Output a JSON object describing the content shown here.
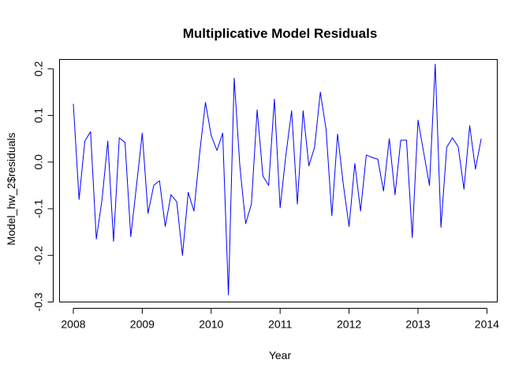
{
  "chart_data": {
    "type": "line",
    "title": "Multiplicative Model Residuals",
    "xlabel": "Year",
    "ylabel": "Model_hw_2$residuals",
    "xlim": [
      2007.8,
      2014.15
    ],
    "ylim": [
      -0.3,
      0.22
    ],
    "x_ticks": [
      2008,
      2009,
      2010,
      2011,
      2012,
      2013,
      2014
    ],
    "x_tick_labels": [
      "2008",
      "2009",
      "2010",
      "2011",
      "2012",
      "2013",
      "2014"
    ],
    "y_ticks": [
      -0.3,
      -0.2,
      -0.1,
      0.0,
      0.1,
      0.2
    ],
    "y_tick_labels": [
      "-0.3",
      "-0.2",
      "-0.1",
      "0.0",
      "0.1",
      "0.2"
    ],
    "grid": false,
    "series": [
      {
        "color": "#0000ff",
        "x_start": 2008,
        "x_step": 0.0833333,
        "values": [
          0.125,
          -0.08,
          0.045,
          0.065,
          -0.165,
          -0.08,
          0.045,
          -0.17,
          0.052,
          0.042,
          -0.16,
          -0.05,
          0.062,
          -0.11,
          -0.05,
          -0.04,
          -0.138,
          -0.07,
          -0.085,
          -0.2,
          -0.065,
          -0.105,
          0.02,
          0.128,
          0.057,
          0.025,
          0.062,
          -0.285,
          0.18,
          -0.01,
          -0.132,
          -0.09,
          0.112,
          -0.03,
          -0.05,
          0.135,
          -0.098,
          0.015,
          0.11,
          -0.09,
          0.11,
          -0.008,
          0.032,
          0.15,
          0.07,
          -0.115,
          0.06,
          -0.048,
          -0.138,
          -0.003,
          -0.105,
          0.015,
          0.01,
          0.006,
          -0.062,
          0.05,
          -0.07,
          0.047,
          0.047,
          -0.162,
          0.09,
          0.02,
          -0.05,
          0.21,
          -0.14,
          0.032,
          0.052,
          0.033,
          -0.058,
          0.078,
          -0.015,
          0.05
        ]
      }
    ]
  }
}
